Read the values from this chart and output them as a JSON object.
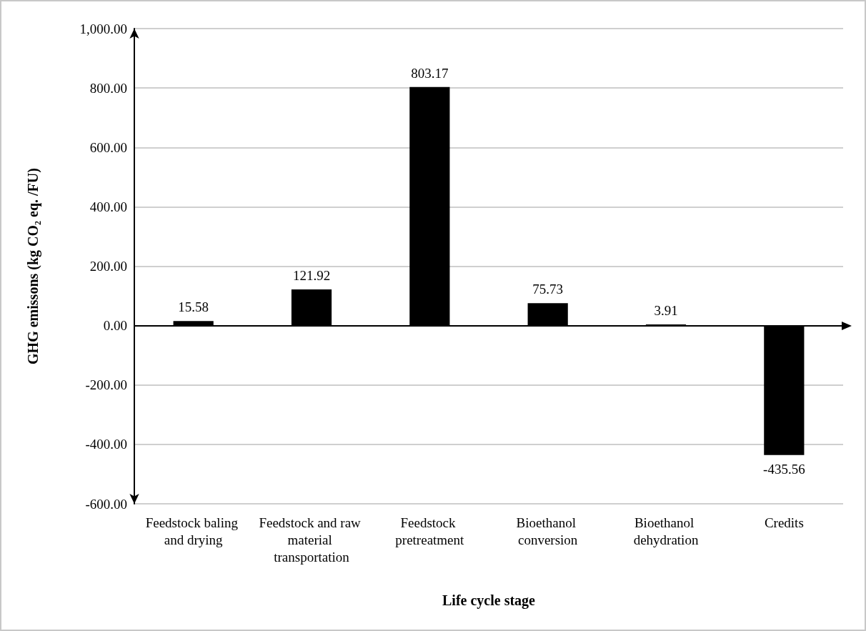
{
  "chart_data": {
    "type": "bar",
    "xlabel": "Life cycle stage",
    "ylabel": "GHG emissons (kg CO₂ eq. /FU)",
    "categories": [
      "Feedstock baling and drying",
      "Feedstock and raw material transportation",
      "Feedstock pretreatment",
      "Bioethanol conversion",
      "Bioethanol dehydration",
      "Credits"
    ],
    "values": [
      15.58,
      121.92,
      803.17,
      75.73,
      3.91,
      -435.56
    ],
    "color": "#000000",
    "data_labels": true,
    "grid": "y",
    "ylim": [
      -600,
      1000
    ],
    "yticks": [
      {
        "value": -600,
        "label": "-600.00"
      },
      {
        "value": -400,
        "label": "-400.00"
      },
      {
        "value": -200,
        "label": "-200.00"
      },
      {
        "value": 0,
        "label": "0.00"
      },
      {
        "value": 200,
        "label": "200.00"
      },
      {
        "value": 400,
        "label": "400.00"
      },
      {
        "value": 600,
        "label": "600.00"
      },
      {
        "value": 800,
        "label": "800.00"
      },
      {
        "value": 1000,
        "label": "1,000.00"
      }
    ]
  }
}
